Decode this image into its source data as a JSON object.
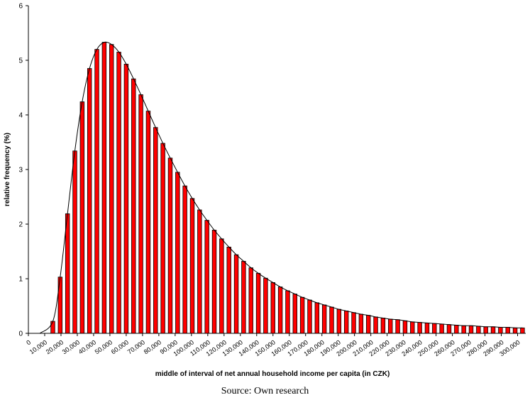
{
  "chart_data": {
    "type": "bar",
    "xlabel": "middle of interval of net annual household income per capita (in CZK)",
    "ylabel": "relative frequency (%)",
    "ylim": [
      0,
      6
    ],
    "yticks": [
      "0",
      "1",
      "2",
      "3",
      "4",
      "5",
      "6"
    ],
    "xlim": [
      0,
      305000
    ],
    "xticks": [
      "0",
      "10,000",
      "20,000",
      "30,000",
      "40,000",
      "50,000",
      "60,000",
      "70,000",
      "80,000",
      "90,000",
      "100,000",
      "110,000",
      "120,000",
      "130,000",
      "140,000",
      "150,000",
      "160,000",
      "170,000",
      "180,000",
      "190,000",
      "200,000",
      "210,000",
      "220,000",
      "230,000",
      "240,000",
      "250,000",
      "260,000",
      "270,000",
      "280,000",
      "290,000",
      "300,000"
    ],
    "x": [
      15000,
      19500,
      24000,
      28500,
      33000,
      37500,
      42000,
      46500,
      51000,
      55500,
      60000,
      64500,
      69000,
      73500,
      78000,
      82500,
      87000,
      91500,
      96000,
      100500,
      105000,
      109500,
      114000,
      118500,
      123000,
      127500,
      132000,
      136500,
      141000,
      145500,
      150000,
      154500,
      159000,
      163500,
      168000,
      172500,
      177000,
      181500,
      186000,
      190500,
      195000,
      199500,
      204000,
      208500,
      213000,
      217500,
      222000,
      226500,
      231000,
      235500,
      240000,
      244500,
      249000,
      253500,
      258000,
      262500,
      267000,
      271500,
      276000,
      280500,
      285000,
      289500,
      294000,
      298500,
      303000
    ],
    "values": [
      0.22,
      1.03,
      2.19,
      3.34,
      4.24,
      4.85,
      5.2,
      5.33,
      5.29,
      5.15,
      4.93,
      4.66,
      4.37,
      4.07,
      3.77,
      3.48,
      3.21,
      2.95,
      2.7,
      2.47,
      2.26,
      2.07,
      1.89,
      1.73,
      1.58,
      1.44,
      1.32,
      1.2,
      1.1,
      1.01,
      0.93,
      0.85,
      0.78,
      0.72,
      0.66,
      0.61,
      0.56,
      0.52,
      0.48,
      0.44,
      0.41,
      0.38,
      0.35,
      0.33,
      0.3,
      0.28,
      0.26,
      0.25,
      0.23,
      0.21,
      0.2,
      0.19,
      0.18,
      0.17,
      0.16,
      0.15,
      0.14,
      0.14,
      0.13,
      0.12,
      0.12,
      0.11,
      0.11,
      0.1,
      0.1
    ],
    "bar_color": "#ff0000",
    "curve_color": "#000000",
    "grid": false
  },
  "caption": "Source: Own research"
}
